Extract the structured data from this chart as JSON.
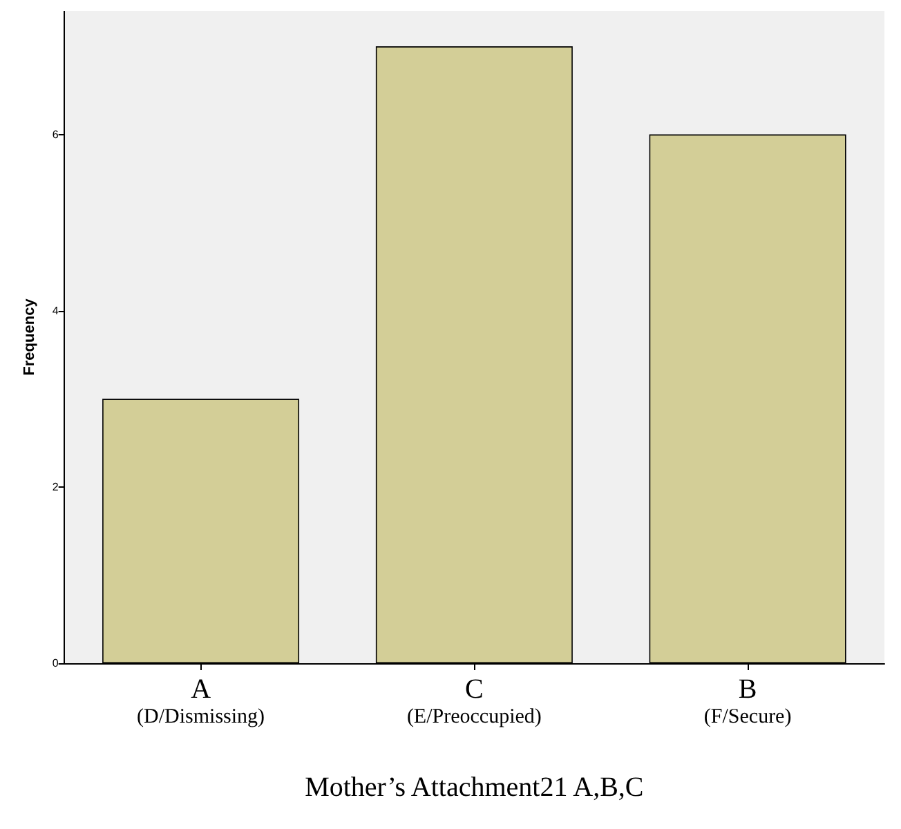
{
  "chart_data": {
    "type": "bar",
    "xlabel": "Mother’s Attachment21 A,B,C",
    "ylabel": "Frequency",
    "categories": [
      "A\n(D/Dismissing)",
      "C\n(E/Preoccupied)",
      "B\n(F/Secure)"
    ],
    "values": [
      3,
      7,
      6
    ],
    "color": "#d3ce97",
    "ylim": [
      0,
      7.4
    ],
    "yticks": [
      0,
      2,
      4,
      6
    ],
    "grid": false
  }
}
